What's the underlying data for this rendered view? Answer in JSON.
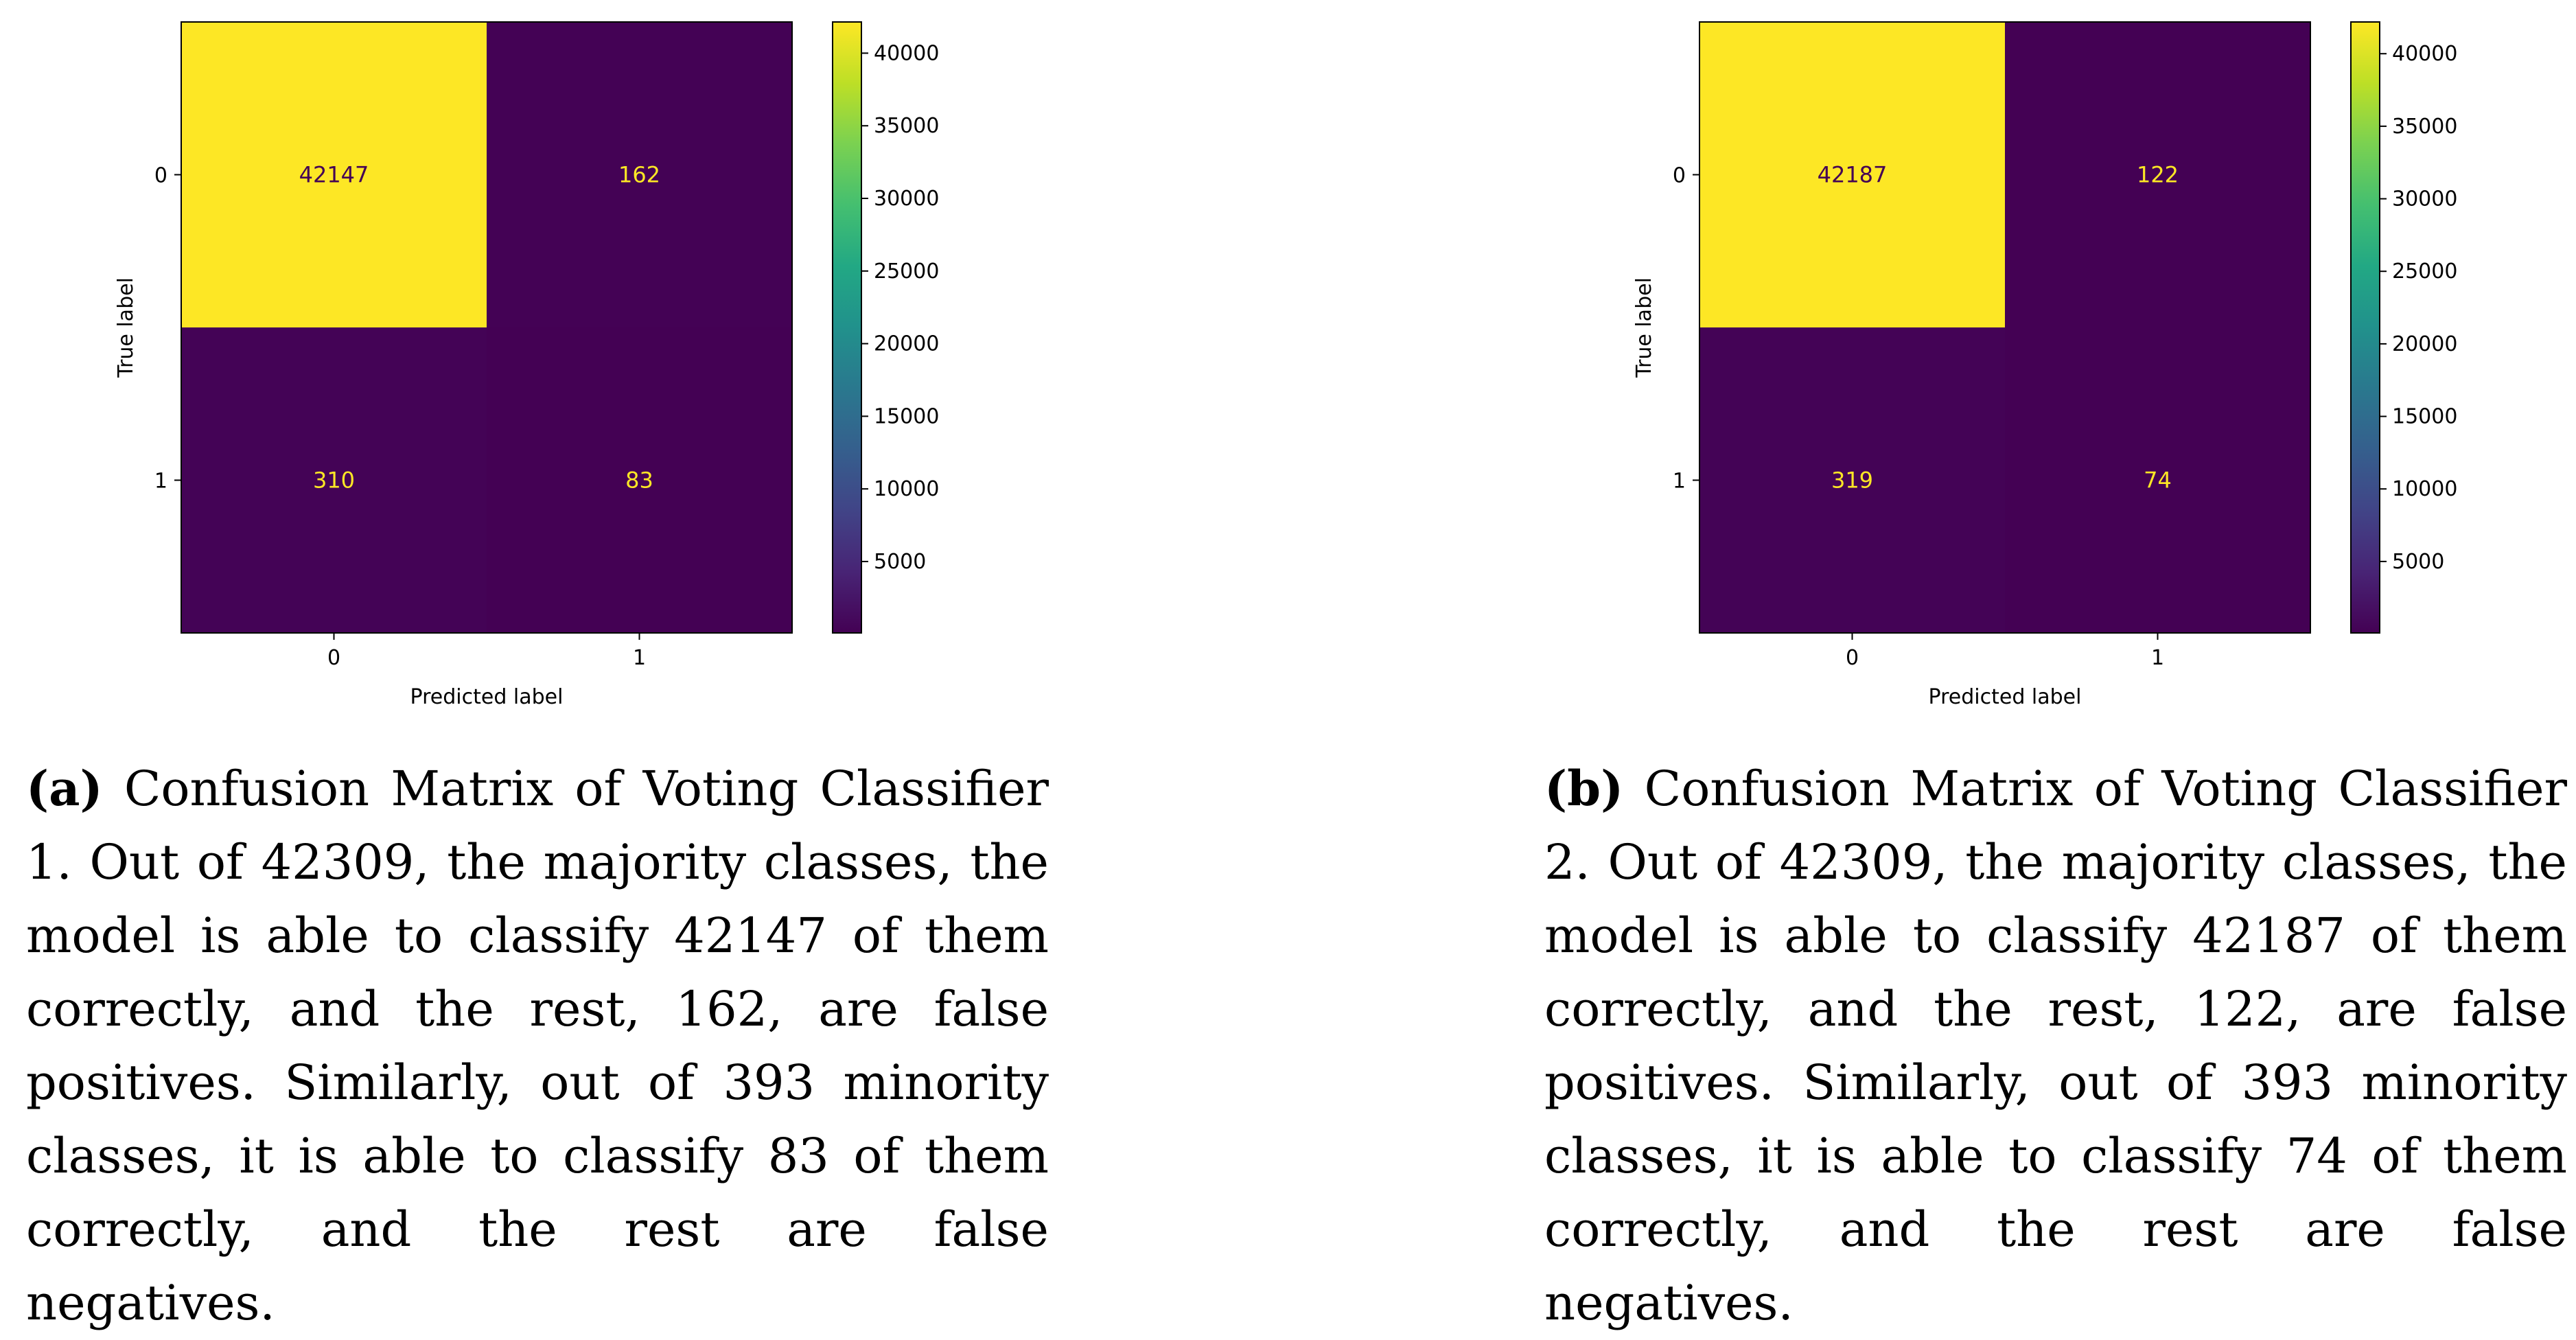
{
  "chart_data": [
    {
      "type": "heatmap",
      "xlabel": "Predicted label",
      "ylabel": "True label",
      "x_ticks": [
        "0",
        "1"
      ],
      "y_ticks": [
        "0",
        "1"
      ],
      "matrix": [
        [
          42147,
          162
        ],
        [
          310,
          83
        ]
      ],
      "colorbar": {
        "colormap": "viridis",
        "range": [
          83,
          42147
        ],
        "ticks": [
          5000,
          10000,
          15000,
          20000,
          25000,
          30000,
          35000,
          40000
        ]
      }
    },
    {
      "type": "heatmap",
      "xlabel": "Predicted label",
      "ylabel": "True label",
      "x_ticks": [
        "0",
        "1"
      ],
      "y_ticks": [
        "0",
        "1"
      ],
      "matrix": [
        [
          42187,
          122
        ],
        [
          319,
          74
        ]
      ],
      "colorbar": {
        "colormap": "viridis",
        "range": [
          74,
          42187
        ],
        "ticks": [
          5000,
          10000,
          15000,
          20000,
          25000,
          30000,
          35000,
          40000
        ]
      }
    }
  ],
  "captions": [
    {
      "label": "(a)",
      "text": "Confusion Matrix of Voting Classifier 1. Out of 42309, the majority classes, the model is able to classify 42147 of them correctly, and the rest, 162, are false positives. Similarly, out of 393 minority classes, it is able to classify 83 of them correctly, and the rest are false negatives."
    },
    {
      "label": "(b)",
      "text": "Confusion Matrix of Voting Classifier 2. Out of 42309, the majority classes, the model is able to classify 42187 of them correctly, and the rest, 122, are false positives. Similarly, out of 393 minority classes, it is able to classify 74 of them correctly, and the rest are false negatives."
    }
  ]
}
